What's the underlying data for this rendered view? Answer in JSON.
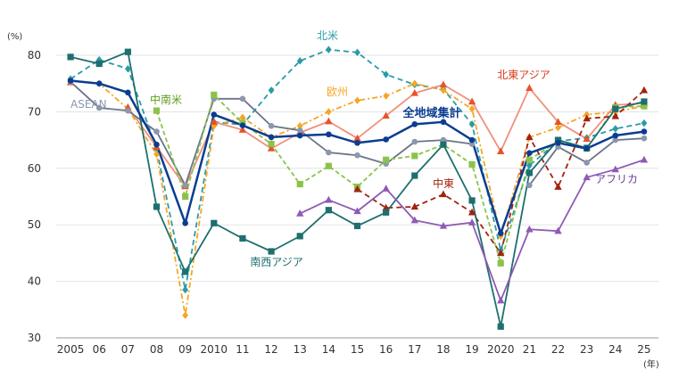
{
  "chart_data": {
    "type": "line",
    "y_unit": "(%)",
    "x_unit": "(年)",
    "ylim": [
      30,
      80
    ],
    "yticks": [
      30,
      40,
      50,
      60,
      70,
      80
    ],
    "x": [
      "2005",
      "2006",
      "2007",
      "2008",
      "2009",
      "2010",
      "2011",
      "2012",
      "2013",
      "2014",
      "2015",
      "2016",
      "2017",
      "2018",
      "2019",
      "2020",
      "2021",
      "2022",
      "2023",
      "2024",
      "2025"
    ],
    "x_tick_labels": [
      "2005",
      "06",
      "07",
      "08",
      "09",
      "2010",
      "11",
      "12",
      "13",
      "14",
      "15",
      "16",
      "17",
      "18",
      "19",
      "2020",
      "21",
      "22",
      "23",
      "24",
      "25"
    ],
    "grid": "horizontal",
    "series": [
      {
        "name": "北米",
        "color": "#2A9BA8",
        "dash": "6,4",
        "marker": "diamond",
        "values": [
          75.8,
          79.2,
          77.6,
          63.5,
          38.5,
          68.2,
          67.7,
          73.8,
          79.0,
          81.0,
          80.5,
          76.6,
          74.8,
          74.0,
          67.8,
          45.5,
          60.5,
          64.8,
          65.4,
          67.0,
          68.0
        ]
      },
      {
        "name": "欧州",
        "color": "#F5A623",
        "dash": "6,3,2,3",
        "marker": "diamond",
        "values": [
          75.5,
          75.0,
          70.5,
          62.5,
          34.0,
          67.5,
          69.0,
          65.5,
          67.5,
          70.0,
          72.0,
          72.8,
          75.0,
          73.8,
          70.5,
          48.0,
          65.5,
          67.2,
          69.5,
          70.0,
          71.0
        ]
      },
      {
        "name": "北東アジア",
        "color": "#E8522A",
        "dash": "",
        "marker": "triangle",
        "values": [
          75.2,
          null,
          70.8,
          63.8,
          56.8,
          68.2,
          66.8,
          63.5,
          66.3,
          68.3,
          65.3,
          69.3,
          73.3,
          74.8,
          71.8,
          63.0,
          74.2,
          68.2,
          65.2,
          71.2,
          71.5
        ],
        "line_color": "#F0907A"
      },
      {
        "name": "全地域集計",
        "color": "#0A3D91",
        "dash": "",
        "marker": "circle",
        "width": 2.5,
        "values": [
          75.5,
          75.0,
          73.4,
          64.2,
          50.3,
          69.5,
          67.6,
          65.5,
          65.8,
          66.0,
          64.5,
          65.1,
          67.8,
          68.2,
          65.0,
          48.5,
          62.7,
          64.5,
          63.5,
          65.8,
          66.5
        ]
      },
      {
        "name": "ASEAN",
        "color": "#8C97AE",
        "dash": "",
        "marker": "circle",
        "values": [
          75.3,
          70.7,
          70.2,
          66.5,
          57.0,
          72.3,
          72.3,
          67.5,
          66.7,
          62.8,
          62.3,
          60.8,
          64.7,
          65.0,
          64.3,
          null,
          57.0,
          63.8,
          61.0,
          65.0,
          65.3
        ],
        "line_color": "#6A7489"
      },
      {
        "name": "中南米",
        "color": "#8BC34A",
        "dash": "5,3",
        "marker": "square",
        "values": [
          null,
          null,
          null,
          70.2,
          55.0,
          73.0,
          68.0,
          64.3,
          57.2,
          60.4,
          56.7,
          61.5,
          62.2,
          64.2,
          60.7,
          43.2,
          61.5,
          64.8,
          63.5,
          70.8,
          71.0
        ]
      },
      {
        "name": "中東",
        "color": "#A3220F",
        "dash": "6,4",
        "marker": "triangle",
        "values": [
          null,
          null,
          null,
          null,
          null,
          null,
          null,
          null,
          null,
          null,
          56.3,
          53.0,
          53.2,
          55.4,
          52.2,
          45.0,
          65.5,
          56.7,
          68.8,
          69.2,
          73.8
        ]
      },
      {
        "name": "南西アジア",
        "color": "#1E6F6F",
        "dash": "",
        "marker": "square",
        "values": [
          79.7,
          78.5,
          80.6,
          53.2,
          41.7,
          50.3,
          47.6,
          45.3,
          48.0,
          52.6,
          49.8,
          52.2,
          58.7,
          64.2,
          54.3,
          32.0,
          59.2,
          65.0,
          63.6,
          70.5,
          71.8
        ]
      },
      {
        "name": "アフリカ",
        "color": "#8E5BB5",
        "dash": "",
        "marker": "triangle",
        "values": [
          null,
          null,
          null,
          null,
          null,
          null,
          null,
          null,
          52.0,
          54.4,
          52.4,
          56.4,
          50.8,
          49.8,
          50.4,
          36.6,
          49.2,
          48.9,
          58.4,
          59.8,
          61.5
        ]
      }
    ],
    "labels": [
      {
        "series": "北米",
        "text": "北米",
        "color": "#2A9BA8"
      },
      {
        "series": "欧州",
        "text": "欧州",
        "color": "#F5A623"
      },
      {
        "series": "北東アジア",
        "text": "北東アジア",
        "color": "#D93A1A"
      },
      {
        "series": "全地域集計",
        "text": "全地域集計",
        "color": "#0A3D91"
      },
      {
        "series": "ASEAN",
        "text": "ASEAN",
        "color": "#8C97AE"
      },
      {
        "series": "中南米",
        "text": "中南米",
        "color": "#5E9C1E"
      },
      {
        "series": "中東",
        "text": "中東",
        "color": "#A3220F"
      },
      {
        "series": "南西アジア",
        "text": "南西アジア",
        "color": "#1E6F6F"
      },
      {
        "series": "アフリカ",
        "text": "アフリカ",
        "color": "#6C3E96"
      }
    ]
  }
}
